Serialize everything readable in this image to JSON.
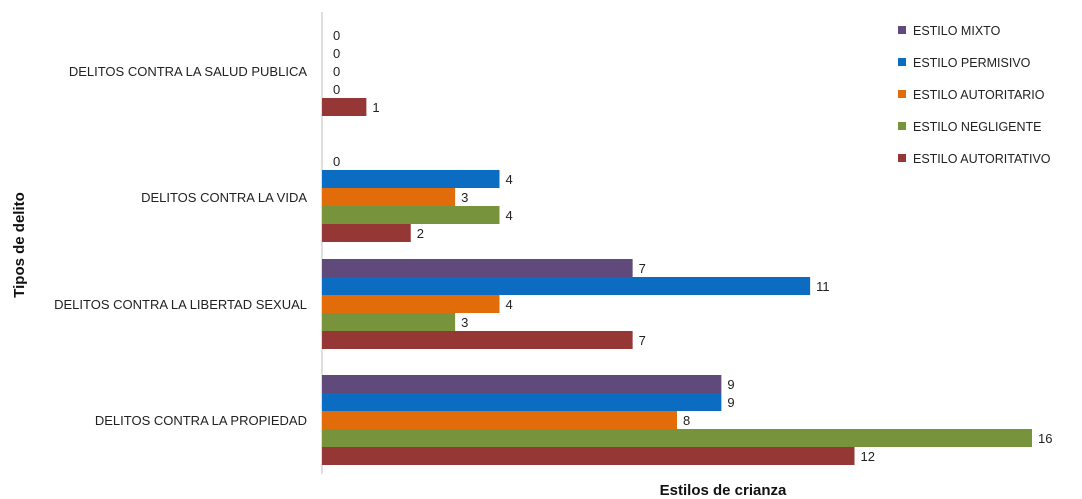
{
  "chart_data": {
    "type": "bar",
    "orientation": "horizontal",
    "xlabel": "Estilos de crianza",
    "ylabel": "Tipos de delito",
    "xlim": [
      0,
      16
    ],
    "grid": false,
    "legend_position": "top-right",
    "categories": [
      "DELITOS CONTRA LA SALUD PUBLICA",
      "DELITOS CONTRA LA VIDA",
      "DELITOS CONTRA LA LIBERTAD SEXUAL",
      "DELITOS CONTRA LA PROPIEDAD"
    ],
    "series": [
      {
        "name": "ESTILO MIXTO",
        "color": "#5f4a7b",
        "values": [
          0,
          0,
          7,
          9
        ]
      },
      {
        "name": "ESTILO PERMISIVO",
        "color": "#0b6cc2",
        "values": [
          0,
          4,
          11,
          9
        ]
      },
      {
        "name": "ESTILO AUTORITARIO",
        "color": "#e36c0a",
        "values": [
          0,
          3,
          4,
          8
        ]
      },
      {
        "name": "ESTILO NEGLIGENTE",
        "color": "#77933c",
        "values": [
          0,
          4,
          3,
          16
        ]
      },
      {
        "name": "ESTILO AUTORITATIVO",
        "color": "#953735",
        "values": [
          1,
          2,
          7,
          12
        ]
      }
    ]
  }
}
